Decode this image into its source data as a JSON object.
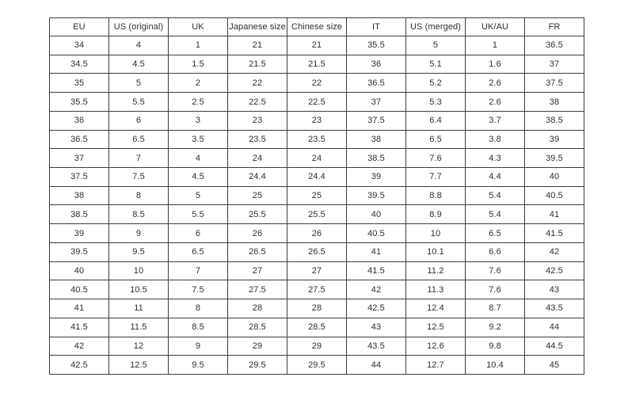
{
  "colors": {
    "background": "#ffffff",
    "border": "#3d3d3d",
    "text": "#2e2e2e"
  },
  "table": {
    "name": "shoe-size-conversion-table",
    "headers": [
      "EU",
      "US (original)",
      "UK",
      "Japanese size",
      "Chinese size",
      "IT",
      "US (merged)",
      "UK/AU",
      "FR"
    ],
    "rows": [
      [
        "34",
        "4",
        "1",
        "21",
        "21",
        "35.5",
        "5",
        "1",
        "36.5"
      ],
      [
        "34.5",
        "4.5",
        "1.5",
        "21.5",
        "21.5",
        "36",
        "5.1",
        "1.6",
        "37"
      ],
      [
        "35",
        "5",
        "2",
        "22",
        "22",
        "36.5",
        "5.2",
        "2.6",
        "37.5"
      ],
      [
        "35.5",
        "5.5",
        "2.5",
        "22.5",
        "22.5",
        "37",
        "5.3",
        "2.6",
        "38"
      ],
      [
        "36",
        "6",
        "3",
        "23",
        "23",
        "37.5",
        "6.4",
        "3.7",
        "38.5"
      ],
      [
        "36.5",
        "6.5",
        "3.5",
        "23.5",
        "23.5",
        "38",
        "6.5",
        "3.8",
        "39"
      ],
      [
        "37",
        "7",
        "4",
        "24",
        "24",
        "38.5",
        "7.6",
        "4.3",
        "39.5"
      ],
      [
        "37.5",
        "7.5",
        "4.5",
        "24.4",
        "24.4",
        "39",
        "7.7",
        "4.4",
        "40"
      ],
      [
        "38",
        "8",
        "5",
        "25",
        "25",
        "39.5",
        "8.8",
        "5.4",
        "40.5"
      ],
      [
        "38.5",
        "8.5",
        "5.5",
        "25.5",
        "25.5",
        "40",
        "8.9",
        "5.4",
        "41"
      ],
      [
        "39",
        "9",
        "6",
        "26",
        "26",
        "40.5",
        "10",
        "6.5",
        "41.5"
      ],
      [
        "39.5",
        "9.5",
        "6.5",
        "26.5",
        "26.5",
        "41",
        "10.1",
        "6.6",
        "42"
      ],
      [
        "40",
        "10",
        "7",
        "27",
        "27",
        "41.5",
        "11.2",
        "7.6",
        "42.5"
      ],
      [
        "40.5",
        "10.5",
        "7.5",
        "27.5",
        "27.5",
        "42",
        "11.3",
        "7.6",
        "43"
      ],
      [
        "41",
        "11",
        "8",
        "28",
        "28",
        "42.5",
        "12.4",
        "8.7",
        "43.5"
      ],
      [
        "41.5",
        "11.5",
        "8.5",
        "28.5",
        "28.5",
        "43",
        "12.5",
        "9.2",
        "44"
      ],
      [
        "42",
        "12",
        "9",
        "29",
        "29",
        "43.5",
        "12.6",
        "9.8",
        "44.5"
      ],
      [
        "42.5",
        "12.5",
        "9.5",
        "29.5",
        "29.5",
        "44",
        "12.7",
        "10.4",
        "45"
      ]
    ]
  }
}
